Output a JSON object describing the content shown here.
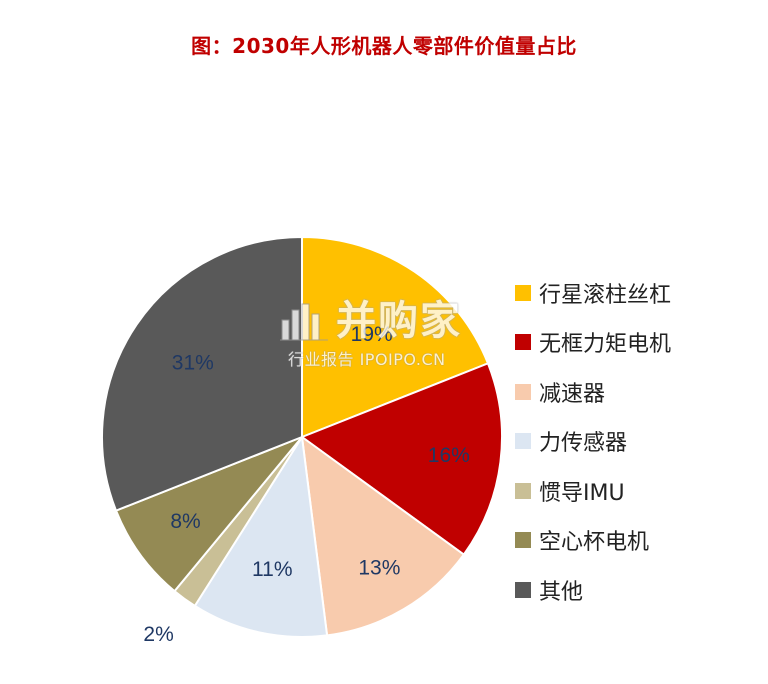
{
  "chart_data": {
    "type": "pie",
    "title": "图：2030年人形机器人零部件价值量占比",
    "categories": [
      "行星滚柱丝杠",
      "无框力矩电机",
      "减速器",
      "力传感器",
      "惯导IMU",
      "空心杯电机",
      "其他"
    ],
    "values": [
      19,
      16,
      13,
      11,
      2,
      8,
      31
    ],
    "data_labels": [
      "19%",
      "16%",
      "13%",
      "11%",
      "2%",
      "8%",
      "31%"
    ],
    "colors": [
      "#ffc000",
      "#c00000",
      "#f8cbad",
      "#dce6f2",
      "#c9bf96",
      "#948a54",
      "#595959"
    ],
    "label_color": "#1f3864",
    "start_angle_deg": 0,
    "direction": "clockwise",
    "legend_position": "right"
  },
  "watermark": {
    "brand": "并购家",
    "subtitle": "行业报告 IPOIPO.CN",
    "icon": "bar-chart-logo-icon"
  }
}
